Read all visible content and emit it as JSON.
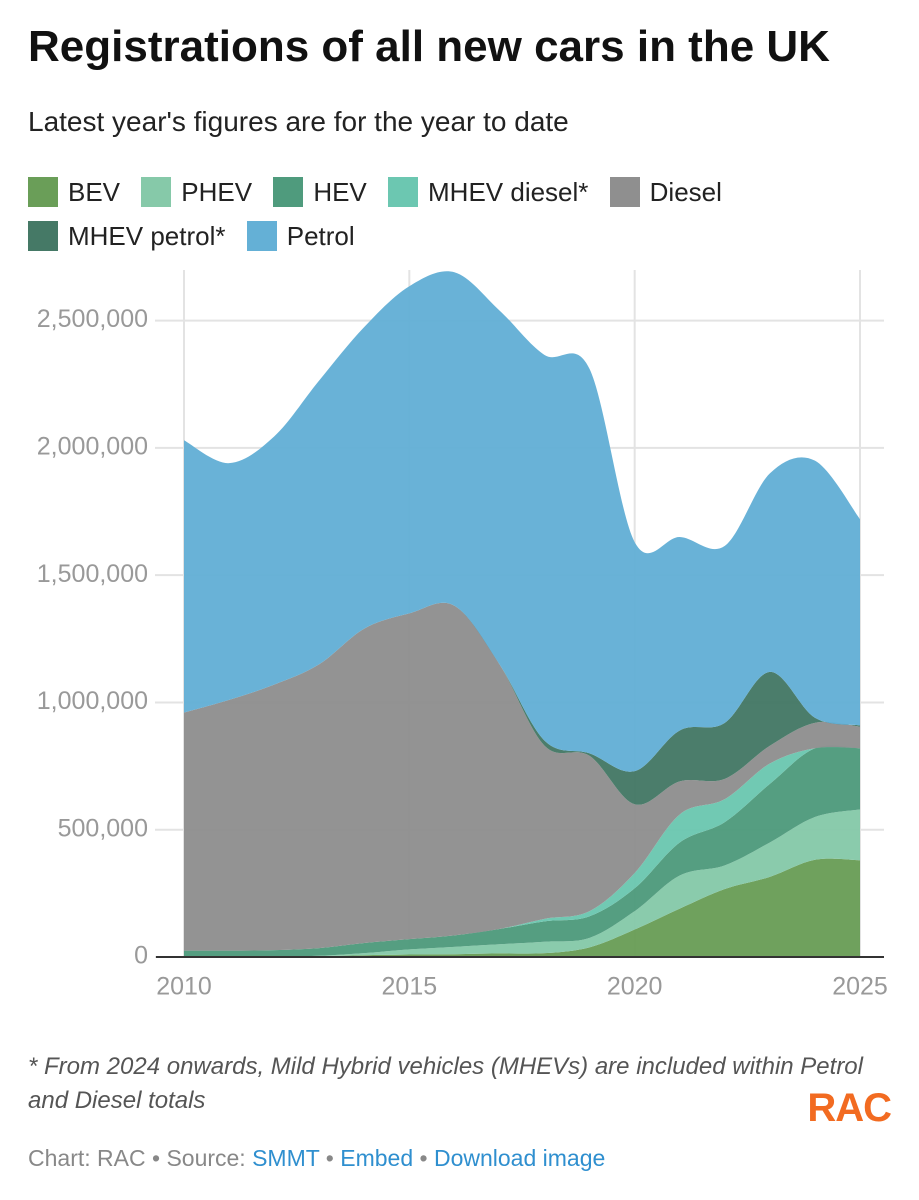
{
  "chart_data": {
    "type": "stacked_area",
    "title": "Registrations of all new cars in the UK",
    "subtitle": "Latest year's figures are for the year to date",
    "x": [
      2010,
      2011,
      2012,
      2013,
      2014,
      2015,
      2016,
      2017,
      2018,
      2019,
      2020,
      2021,
      2022,
      2023,
      2024,
      2025
    ],
    "series": [
      {
        "name": "BEV",
        "color": "#6a9e58",
        "values": [
          0,
          1000,
          2000,
          3000,
          7000,
          10000,
          11000,
          14000,
          15000,
          38000,
          108000,
          190000,
          267000,
          315000,
          382000,
          380000
        ]
      },
      {
        "name": "PHEV",
        "color": "#86c9a9",
        "values": [
          0,
          0,
          0,
          2000,
          8000,
          20000,
          29000,
          36000,
          45000,
          37000,
          72000,
          130000,
          93000,
          135000,
          168000,
          200000
        ]
      },
      {
        "name": "HEV",
        "color": "#4f9b7d",
        "values": [
          25000,
          24000,
          25000,
          30000,
          40000,
          40000,
          45000,
          60000,
          80000,
          85000,
          90000,
          130000,
          170000,
          230000,
          270000,
          240000
        ]
      },
      {
        "name": "MHEV diesel*",
        "color": "#6cc7b1",
        "values": [
          0,
          0,
          0,
          0,
          0,
          0,
          0,
          0,
          10000,
          20000,
          60000,
          110000,
          90000,
          80000,
          0,
          0
        ]
      },
      {
        "name": "Diesel",
        "color": "#8f8f8f",
        "values": [
          935000,
          985000,
          1043000,
          1115000,
          1235000,
          1280000,
          1295000,
          1040000,
          680000,
          610000,
          270000,
          130000,
          80000,
          70000,
          100000,
          85000
        ]
      },
      {
        "name": "MHEV petrol*",
        "color": "#457966",
        "values": [
          0,
          0,
          0,
          0,
          0,
          0,
          0,
          0,
          20000,
          10000,
          130000,
          200000,
          220000,
          290000,
          20000,
          5000
        ]
      },
      {
        "name": "Petrol",
        "color": "#64b0d6",
        "values": [
          1070000,
          930000,
          975000,
          1115000,
          1185000,
          1285000,
          1310000,
          1390000,
          1515000,
          1510000,
          900000,
          760000,
          695000,
          780000,
          1010000,
          810000
        ]
      }
    ],
    "xlim": [
      2010,
      2025
    ],
    "xticks": [
      2010,
      2015,
      2020,
      2025
    ],
    "ylim": [
      0,
      2750000
    ],
    "yticks": [
      0,
      {
        "value": 500000,
        "label": "500,000"
      },
      {
        "value": 1000000,
        "label": "1,000,000"
      },
      {
        "value": 1500000,
        "label": "1,500,000"
      },
      {
        "value": 2000000,
        "label": "2,000,000"
      },
      {
        "value": 2500000,
        "label": "2,500,000"
      }
    ],
    "grid": true,
    "note": "* From 2024 onwards, Mild Hybrid vehicles (MHEVs) are included within Petrol and Diesel totals",
    "logo": "RAC",
    "credits": {
      "chart": "Chart: RAC",
      "separator": "•",
      "source_label": "Source:",
      "source": "SMMT",
      "embed": "Embed",
      "download": "Download image"
    }
  }
}
